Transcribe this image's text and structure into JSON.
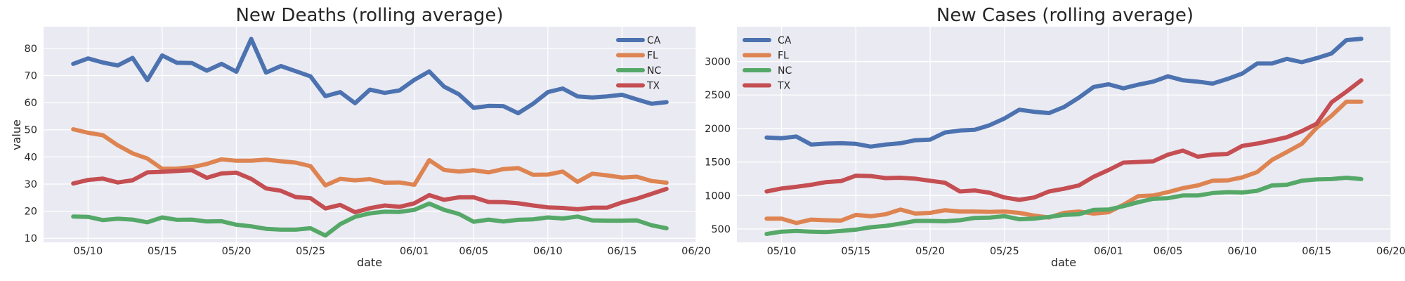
{
  "chart_data": [
    {
      "type": "line",
      "title": "New Deaths (rolling average)",
      "xlabel": "date",
      "ylabel": "value",
      "xlim": [
        "2020-05-07",
        "2020-06-20"
      ],
      "ylim": [
        8.5,
        88
      ],
      "x_ticks": [
        "2020-05-10",
        "2020-05-15",
        "2020-05-20",
        "2020-05-25",
        "2020-06-01",
        "2020-06-05",
        "2020-06-10",
        "2020-06-15",
        "2020-06-20"
      ],
      "x_tick_labels": [
        "05/10",
        "05/15",
        "05/20",
        "05/25",
        "06/01",
        "06/05",
        "06/10",
        "06/15",
        "06/20"
      ],
      "y_ticks": [
        10,
        20,
        30,
        40,
        50,
        60,
        70,
        80
      ],
      "y_tick_labels": [
        "10",
        "20",
        "30",
        "40",
        "50",
        "60",
        "70",
        "80"
      ],
      "grid": true,
      "legend": "top-right",
      "x_start": "2020-05-09",
      "x_step_days": 1,
      "series": [
        {
          "name": "CA",
          "color": "#4c72b0",
          "values": [
            74.3,
            76.3,
            74.8,
            73.7,
            76.5,
            68.3,
            77.4,
            74.7,
            74.6,
            71.8,
            74.3,
            71.4,
            83.5,
            71.1,
            73.5,
            71.6,
            69.7,
            62.4,
            63.9,
            59.8,
            64.8,
            63.6,
            64.5,
            68.4,
            71.5,
            65.9,
            63.1,
            58.1,
            58.8,
            58.7,
            56.1,
            59.6,
            63.9,
            65.2,
            62.3,
            61.9,
            62.3,
            62.9,
            61.2,
            59.6,
            60.2
          ]
        },
        {
          "name": "FL",
          "color": "#dd8452",
          "values": [
            50.2,
            48.9,
            48.0,
            44.3,
            41.3,
            39.4,
            35.6,
            35.7,
            36.2,
            37.4,
            39.1,
            38.6,
            38.6,
            39.0,
            38.4,
            37.9,
            36.6,
            29.5,
            31.9,
            31.4,
            31.8,
            30.5,
            30.6,
            29.7,
            38.8,
            35.2,
            34.6,
            35.1,
            34.3,
            35.5,
            35.9,
            33.4,
            33.5,
            34.6,
            30.8,
            33.8,
            33.2,
            32.4,
            32.7,
            31.1,
            30.5
          ]
        },
        {
          "name": "NC",
          "color": "#55a868",
          "values": [
            18.0,
            17.9,
            16.7,
            17.2,
            16.9,
            15.9,
            17.7,
            16.8,
            16.9,
            16.2,
            16.3,
            15.0,
            14.4,
            13.5,
            13.2,
            13.2,
            13.7,
            11.0,
            15.2,
            17.9,
            19.2,
            19.8,
            19.7,
            20.5,
            22.8,
            20.5,
            19.0,
            16.1,
            16.9,
            16.2,
            16.8,
            17.0,
            17.7,
            17.3,
            18.0,
            16.6,
            16.5,
            16.5,
            16.6,
            14.8,
            13.7
          ]
        },
        {
          "name": "TX",
          "color": "#c44e52",
          "values": [
            30.2,
            31.5,
            32.0,
            30.6,
            31.4,
            34.3,
            34.5,
            34.8,
            35.1,
            32.3,
            33.9,
            34.2,
            31.9,
            28.4,
            27.5,
            25.2,
            24.8,
            21.0,
            22.3,
            19.6,
            21.1,
            22.1,
            21.6,
            22.9,
            25.9,
            24.2,
            25.1,
            25.1,
            23.4,
            23.3,
            22.9,
            22.1,
            21.4,
            21.2,
            20.7,
            21.3,
            21.3,
            23.2,
            24.6,
            26.4,
            28.2
          ]
        }
      ]
    },
    {
      "type": "line",
      "title": "New Cases (rolling average)",
      "xlabel": "date",
      "ylabel": "",
      "xlim": [
        "2020-05-07",
        "2020-06-20"
      ],
      "ylim": [
        300,
        3520
      ],
      "x_ticks": [
        "2020-05-10",
        "2020-05-15",
        "2020-05-20",
        "2020-05-25",
        "2020-06-01",
        "2020-06-05",
        "2020-06-10",
        "2020-06-15",
        "2020-06-20"
      ],
      "x_tick_labels": [
        "05/10",
        "05/15",
        "05/20",
        "05/25",
        "06/01",
        "06/05",
        "06/10",
        "06/15",
        "06/20"
      ],
      "y_ticks": [
        500,
        1000,
        1500,
        2000,
        2500,
        3000
      ],
      "y_tick_labels": [
        "500",
        "1000",
        "1500",
        "2000",
        "2500",
        "3000"
      ],
      "grid": true,
      "legend": "top-left",
      "x_start": "2020-05-09",
      "x_step_days": 1,
      "series": [
        {
          "name": "CA",
          "color": "#4c72b0",
          "values": [
            1865,
            1855,
            1880,
            1760,
            1775,
            1780,
            1770,
            1730,
            1760,
            1780,
            1825,
            1835,
            1940,
            1970,
            1980,
            2050,
            2150,
            2280,
            2250,
            2230,
            2320,
            2460,
            2620,
            2660,
            2600,
            2655,
            2700,
            2780,
            2720,
            2700,
            2670,
            2740,
            2820,
            2970,
            2970,
            3040,
            2990,
            3050,
            3120,
            3320,
            3340
          ]
        },
        {
          "name": "FL",
          "color": "#dd8452",
          "values": [
            655,
            655,
            590,
            640,
            630,
            625,
            710,
            690,
            720,
            790,
            730,
            740,
            780,
            760,
            760,
            755,
            760,
            740,
            700,
            670,
            740,
            760,
            730,
            750,
            860,
            990,
            1000,
            1050,
            1110,
            1150,
            1220,
            1225,
            1270,
            1350,
            1530,
            1650,
            1770,
            2010,
            2190,
            2400,
            2400
          ]
        },
        {
          "name": "NC",
          "color": "#55a868",
          "values": [
            425,
            460,
            470,
            460,
            455,
            470,
            490,
            525,
            545,
            580,
            620,
            620,
            615,
            630,
            665,
            670,
            690,
            645,
            655,
            680,
            710,
            720,
            785,
            790,
            840,
            900,
            950,
            960,
            1000,
            1000,
            1035,
            1050,
            1045,
            1070,
            1150,
            1160,
            1220,
            1240,
            1245,
            1265,
            1245
          ]
        },
        {
          "name": "TX",
          "color": "#c44e52",
          "values": [
            1060,
            1105,
            1130,
            1160,
            1200,
            1215,
            1295,
            1290,
            1260,
            1265,
            1250,
            1220,
            1190,
            1060,
            1075,
            1040,
            970,
            935,
            970,
            1060,
            1100,
            1150,
            1280,
            1380,
            1490,
            1500,
            1510,
            1610,
            1670,
            1580,
            1610,
            1620,
            1740,
            1775,
            1820,
            1870,
            1960,
            2070,
            2390,
            2550,
            2720
          ]
        }
      ]
    }
  ]
}
